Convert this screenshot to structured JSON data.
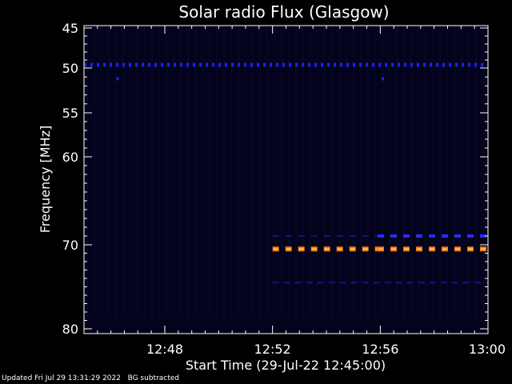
{
  "chart_data": {
    "type": "heatmap",
    "title": "Solar radio Flux (Glasgow)",
    "xlabel": "Start Time (29-Jul-22 12:45:00)",
    "ylabel": "Frequency [MHz]",
    "x_unit": "minutes after 12:45:00",
    "xlim": [
      0,
      15
    ],
    "ylim_top_to_bottom": [
      45,
      80
    ],
    "x_ticks": [
      {
        "value": 3,
        "label": "12:48"
      },
      {
        "value": 7,
        "label": "12:52"
      },
      {
        "value": 11,
        "label": "12:56"
      },
      {
        "value": 15,
        "label": "13:00"
      }
    ],
    "y_ticks": [
      {
        "value": 45,
        "label": "45"
      },
      {
        "value": 50,
        "label": "50"
      },
      {
        "value": 55,
        "label": "55"
      },
      {
        "value": 60,
        "label": "60"
      },
      {
        "value": 70,
        "label": "70"
      },
      {
        "value": 80,
        "label": "80"
      }
    ],
    "background_color": "#000000",
    "plot_background_color": "#03031c",
    "signals": [
      {
        "freq": 49.6,
        "t_start": 0,
        "t_end": 15,
        "color": "#2020ee",
        "style": "dotted"
      },
      {
        "freq": 51.2,
        "t_start": 1.2,
        "t_end": 1.35,
        "color": "#2020ee",
        "style": "point"
      },
      {
        "freq": 51.2,
        "t_start": 11.05,
        "t_end": 11.2,
        "color": "#2020ee",
        "style": "point"
      },
      {
        "freq": 69.0,
        "t_start": 7.0,
        "t_end": 10.9,
        "color": "#1a1a99",
        "style": "dashed-faint"
      },
      {
        "freq": 69.0,
        "t_start": 10.9,
        "t_end": 15,
        "color": "#2a2aff",
        "style": "dashed"
      },
      {
        "freq": 70.5,
        "t_start": 7.0,
        "t_end": 10.9,
        "color": "#ff7a00",
        "style": "dashed-bold"
      },
      {
        "freq": 70.5,
        "t_start": 10.9,
        "t_end": 15,
        "color": "#ff7a00",
        "style": "dashed-bold"
      },
      {
        "freq": 74.5,
        "t_start": 7.0,
        "t_end": 15,
        "color": "#1a1a99",
        "style": "dashed-thin"
      }
    ]
  },
  "footer": {
    "updated": "Updated Fri Jul 29 13:31:29 2022",
    "note": "BG subtracted"
  }
}
